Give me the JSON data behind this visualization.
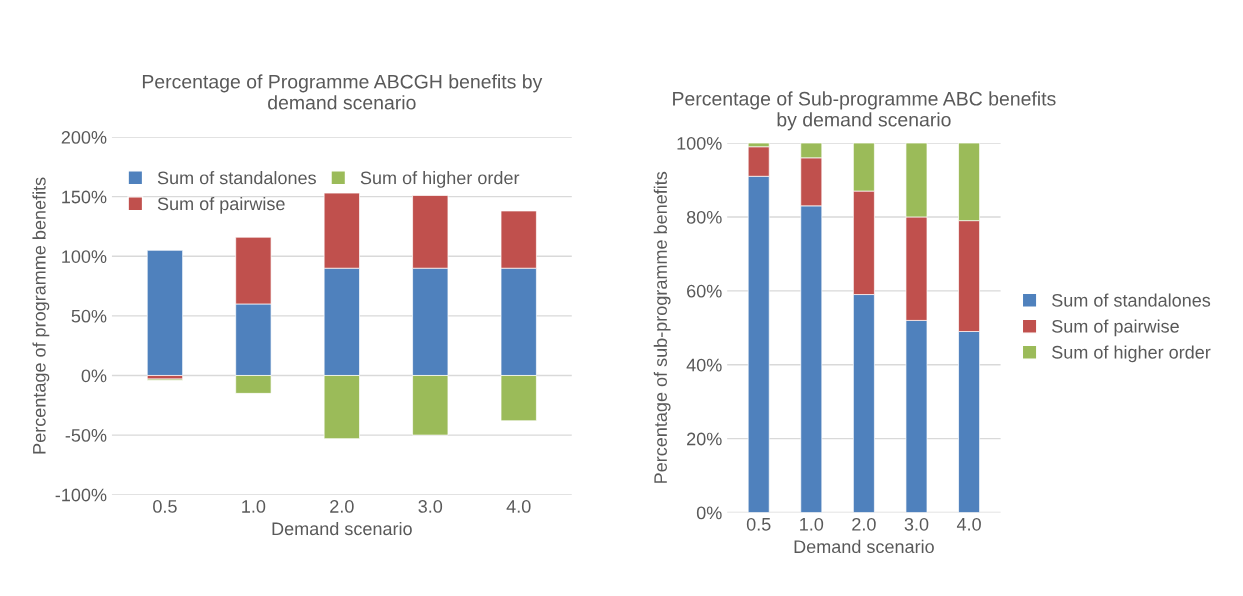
{
  "chart_data": [
    {
      "type": "bar",
      "stacked": true,
      "title": "Percentage of Programme ABCGH benefits by\ndemand scenario",
      "xlabel": "Demand scenario",
      "ylabel": "Percentage of programme benefits",
      "categories": [
        "0.5",
        "1.0",
        "2.0",
        "3.0",
        "4.0"
      ],
      "series": [
        {
          "name": "Sum of standalones",
          "color": "#4f81bd",
          "values": [
            105,
            60,
            90,
            90,
            90
          ]
        },
        {
          "name": "Sum of pairwise",
          "color": "#c0504d",
          "values": [
            -3,
            56,
            63,
            61,
            48
          ]
        },
        {
          "name": "Sum of higher order",
          "color": "#9bbb59",
          "values": [
            -1,
            -15,
            -53,
            -50,
            -38
          ]
        }
      ],
      "ylim": [
        -100,
        200
      ],
      "yticks": [
        {
          "value": -100,
          "label": "-100%"
        },
        {
          "value": -50,
          "label": "-50%"
        },
        {
          "value": 0,
          "label": "0%"
        },
        {
          "value": 50,
          "label": "50%"
        },
        {
          "value": 100,
          "label": "100%"
        },
        {
          "value": 150,
          "label": "150%"
        },
        {
          "value": 200,
          "label": "200%"
        }
      ],
      "grid": "y",
      "legend": "top"
    },
    {
      "type": "bar",
      "stacked": true,
      "title": "Percentage of Sub-programme ABC benefits\nby demand scenario",
      "xlabel": "Demand scenario",
      "ylabel": "Percentage of sub-programme benefits",
      "categories": [
        "0.5",
        "1.0",
        "2.0",
        "3.0",
        "4.0"
      ],
      "series": [
        {
          "name": "Sum of standalones",
          "color": "#4f81bd",
          "values": [
            91,
            83,
            59,
            52,
            49
          ]
        },
        {
          "name": "Sum of pairwise",
          "color": "#c0504d",
          "values": [
            8,
            13,
            28,
            28,
            30
          ]
        },
        {
          "name": "Sum of higher order",
          "color": "#9bbb59",
          "values": [
            1,
            4,
            13,
            20,
            21
          ]
        }
      ],
      "ylim": [
        0,
        100
      ],
      "yticks": [
        {
          "value": 0,
          "label": "0%"
        },
        {
          "value": 20,
          "label": "20%"
        },
        {
          "value": 40,
          "label": "40%"
        },
        {
          "value": 60,
          "label": "60%"
        },
        {
          "value": 80,
          "label": "80%"
        },
        {
          "value": 100,
          "label": "100%"
        }
      ],
      "grid": "y",
      "legend": "right"
    }
  ]
}
